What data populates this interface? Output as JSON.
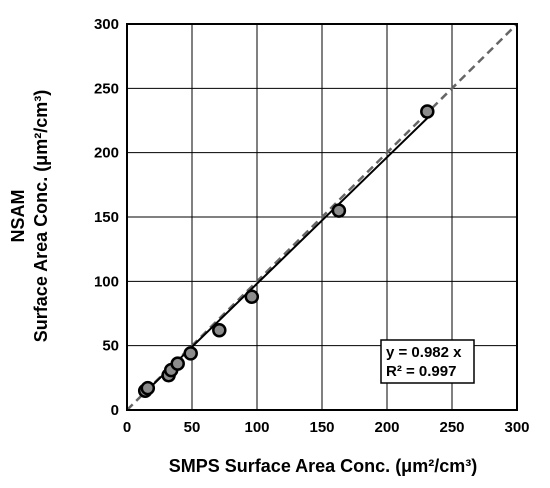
{
  "chart_data": {
    "type": "scatter",
    "xlabel": "SMPS Surface Area Conc. (μm²/cm³)",
    "ylabel_lines": [
      "NSAM",
      "Surface Area Conc. (μm²/cm³)"
    ],
    "xlim": [
      0,
      300
    ],
    "ylim": [
      0,
      300
    ],
    "x_ticks": [
      "0",
      "50",
      "100",
      "150",
      "200",
      "250",
      "300"
    ],
    "y_ticks": [
      "0",
      "50",
      "100",
      "150",
      "200",
      "250",
      "300"
    ],
    "grid": true,
    "points": [
      {
        "x": 14,
        "y": 15
      },
      {
        "x": 16,
        "y": 17
      },
      {
        "x": 32,
        "y": 27
      },
      {
        "x": 34,
        "y": 31
      },
      {
        "x": 39,
        "y": 36
      },
      {
        "x": 49,
        "y": 44
      },
      {
        "x": 71,
        "y": 62
      },
      {
        "x": 96,
        "y": 88
      },
      {
        "x": 163,
        "y": 155
      },
      {
        "x": 231,
        "y": 232
      }
    ],
    "fit": {
      "slope": 0.982,
      "x_start": 12,
      "x_end": 232
    },
    "reference_line": {
      "slope": 1,
      "style": "dashed"
    },
    "annotation": {
      "lines": [
        "y = 0.982 x",
        "R² = 0.997"
      ],
      "position": "bottom-right"
    }
  }
}
